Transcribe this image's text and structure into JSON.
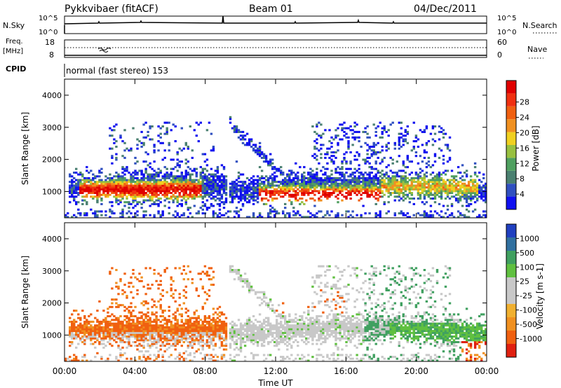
{
  "header": {
    "station": "Pykkvibaer (fitACF)",
    "beam": "Beam 01",
    "date": "04/Dec/2011"
  },
  "noise_panel": {
    "left_label": "N.Sky",
    "left_ticks": [
      "10^5",
      "10^0"
    ],
    "right_ticks": [
      "10^5",
      "10^0"
    ],
    "right_label": "N.Search"
  },
  "freq_panel": {
    "left_label_1": "Freq.",
    "left_label_2": "[MHz]",
    "left_ticks": [
      "18",
      "8"
    ],
    "right_ticks": [
      "60",
      "0"
    ],
    "right_label": "Nave"
  },
  "cpid": {
    "label": "CPID",
    "value": "normal (fast stereo) 153"
  },
  "chart_data": [
    {
      "type": "heatmap",
      "name": "power",
      "ylabel": "Slant Range [km]",
      "ylim": [
        180,
        4500
      ],
      "yticks": [
        "1000",
        "2000",
        "3000",
        "4000"
      ],
      "colorbar": {
        "label": "Power [dB]",
        "ticks": [
          "4",
          "8",
          "12",
          "16",
          "20",
          "24",
          "28"
        ],
        "colors": [
          "#1010f0",
          "#3050c0",
          "#4a8070",
          "#4fa060",
          "#98c040",
          "#f0d020",
          "#f09020",
          "#f06010",
          "#f03010",
          "#e00000"
        ]
      }
    },
    {
      "type": "heatmap",
      "name": "velocity",
      "ylabel": "Slant Range [km]",
      "ylim": [
        180,
        4500
      ],
      "yticks": [
        "1000",
        "2000",
        "3000",
        "4000"
      ],
      "xticks": [
        "00:00",
        "04:00",
        "08:00",
        "12:00",
        "16:00",
        "20:00",
        "00:00"
      ],
      "xlabel": "Time UT",
      "colorbar": {
        "label": "Velocity [m s-1]",
        "ticks": [
          "1000",
          "500",
          "100",
          "25",
          "-25",
          "-100",
          "-500",
          "-1000"
        ],
        "colors": [
          "#2040c0",
          "#3070a0",
          "#40a060",
          "#60c040",
          "#c8c8c8",
          "#c8c8c8",
          "#f0b030",
          "#f09020",
          "#f06010",
          "#e02010"
        ]
      }
    }
  ]
}
